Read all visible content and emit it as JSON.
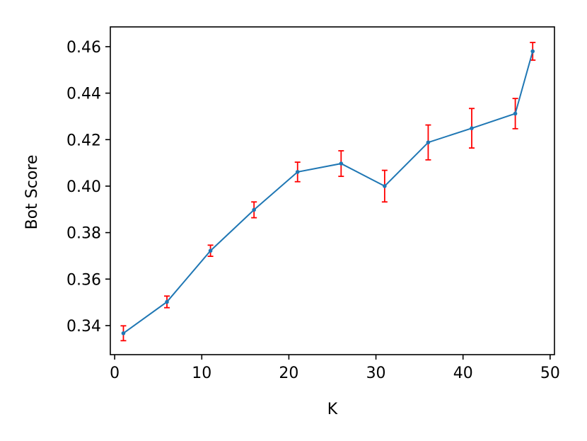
{
  "chart_data": {
    "type": "line",
    "title": "",
    "xlabel": "K",
    "ylabel": "Bot Score",
    "xlim": [
      -0.5,
      50.5
    ],
    "ylim": [
      0.3275,
      0.4685
    ],
    "xticks": [
      0,
      10,
      20,
      30,
      40,
      50
    ],
    "xtick_labels": [
      "0",
      "10",
      "20",
      "30",
      "40",
      "50"
    ],
    "yticks": [
      0.34,
      0.36,
      0.38,
      0.4,
      0.42,
      0.44,
      0.46
    ],
    "ytick_labels": [
      "0.34",
      "0.36",
      "0.38",
      "0.40",
      "0.42",
      "0.44",
      "0.46"
    ],
    "grid": false,
    "line_color": "#1f77b4",
    "errorbar_color": "#ff0000",
    "x": [
      1,
      6,
      11,
      16,
      21,
      26,
      31,
      36,
      41,
      46,
      48
    ],
    "y": [
      0.3367,
      0.3502,
      0.3722,
      0.3898,
      0.4061,
      0.4097,
      0.4,
      0.4188,
      0.4249,
      0.4312,
      0.458
    ],
    "err": [
      0.0032,
      0.0025,
      0.0024,
      0.0034,
      0.0042,
      0.0055,
      0.0068,
      0.0075,
      0.0085,
      0.0065,
      0.0038
    ]
  }
}
